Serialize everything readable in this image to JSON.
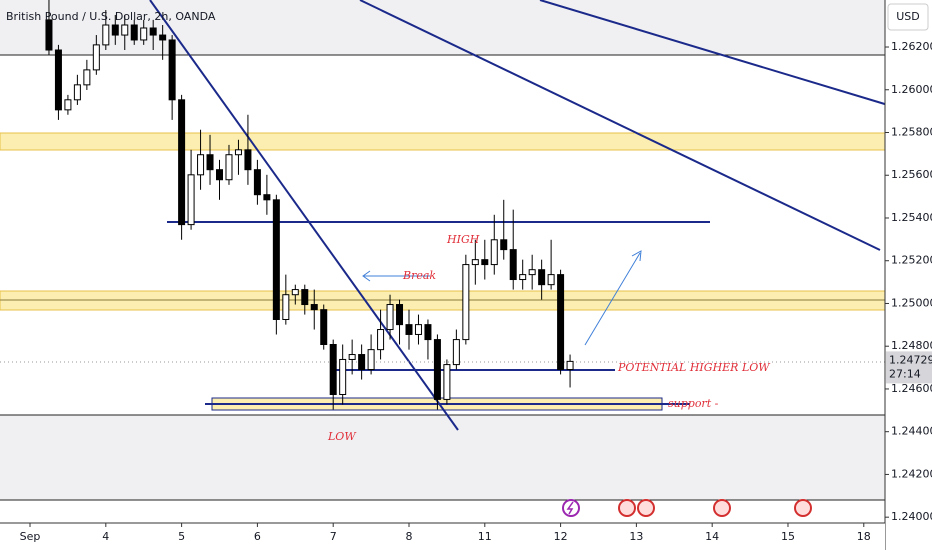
{
  "chart_data": {
    "type": "candlestick",
    "title": "British Pound / U.S. Dollar, 2h, OANDA",
    "currency": "USD",
    "last_price": 1.24729,
    "countdown": "27:14",
    "annotations": [
      "HIGH",
      "LOW",
      "Break",
      "POTENTIAL HIGHER LOW",
      "support -"
    ],
    "up_color": "#ffffff",
    "down_color": "#000000",
    "border_color": "#000000",
    "xlim": [
      -0.396,
      11.28
    ],
    "xticks": [
      {
        "value": 0,
        "label": "Sep"
      },
      {
        "value": 1,
        "label": "4"
      },
      {
        "value": 2,
        "label": "5"
      },
      {
        "value": 3,
        "label": "6"
      },
      {
        "value": 4,
        "label": "7"
      },
      {
        "value": 5,
        "label": "8"
      },
      {
        "value": 6,
        "label": "11"
      },
      {
        "value": 7,
        "label": "12"
      },
      {
        "value": 8,
        "label": "13"
      },
      {
        "value": 9,
        "label": "14"
      },
      {
        "value": 10,
        "label": "15"
      },
      {
        "value": 11,
        "label": "18"
      }
    ],
    "ylim": [
      1.2394,
      1.2642
    ],
    "yticks": [
      {
        "value": 1.262,
        "label": "1.26200"
      },
      {
        "value": 1.26,
        "label": "1.26000"
      },
      {
        "value": 1.258,
        "label": "1.25800"
      },
      {
        "value": 1.256,
        "label": "1.25600"
      },
      {
        "value": 1.254,
        "label": "1.25400"
      },
      {
        "value": 1.252,
        "label": "1.25200"
      },
      {
        "value": 1.25,
        "label": "1.25000"
      },
      {
        "value": 1.248,
        "label": "1.24800"
      },
      {
        "value": 1.246,
        "label": "1.24600"
      },
      {
        "value": 1.244,
        "label": "1.24400"
      },
      {
        "value": 1.242,
        "label": "1.24200"
      },
      {
        "value": 1.24,
        "label": "1.24000"
      }
    ],
    "x": [
      0.25,
      0.375,
      0.5,
      0.625,
      0.75,
      0.875,
      1,
      1.125,
      1.25,
      1.375,
      1.5,
      1.625,
      1.75,
      1.875,
      2,
      2.125,
      2.25,
      2.375,
      2.5,
      2.625,
      2.75,
      2.875,
      3,
      3.125,
      3.25,
      3.375,
      3.5,
      3.625,
      3.75,
      3.875,
      4,
      4.125,
      4.25,
      4.375,
      4.5,
      4.625,
      4.75,
      4.875,
      5,
      5.125,
      5.25,
      5.375,
      5.5,
      5.625,
      5.75,
      5.875,
      6,
      6.125,
      6.25,
      6.375,
      6.5,
      6.625,
      6.75,
      6.875,
      7,
      7.125
    ],
    "open": [
      1.26327,
      1.26186,
      1.25906,
      1.25953,
      1.26023,
      1.26093,
      1.2621,
      1.26303,
      1.26256,
      1.26303,
      1.26233,
      1.26289,
      1.26256,
      1.26233,
      1.25953,
      1.25369,
      1.25602,
      1.25696,
      1.25626,
      1.25579,
      1.25696,
      1.25719,
      1.25626,
      1.25509,
      1.25485,
      1.24925,
      1.25041,
      1.25065,
      1.24995,
      1.24971,
      1.24808,
      1.24574,
      1.24738,
      1.24761,
      1.24691,
      1.24784,
      1.24878,
      1.24995,
      1.24901,
      1.24855,
      1.24901,
      1.24831,
      1.24551,
      1.24714,
      1.24831,
      1.25182,
      1.25205,
      1.25182,
      1.25298,
      1.25252,
      1.25112,
      1.25135,
      1.25158,
      1.25088,
      1.25135,
      1.24691
    ],
    "high": [
      1.2642,
      1.2621,
      1.25976,
      1.2607,
      1.2614,
      1.26256,
      1.26373,
      1.2635,
      1.2635,
      1.26327,
      1.26327,
      1.26327,
      1.26303,
      1.26256,
      1.25976,
      1.25719,
      1.25813,
      1.25789,
      1.25672,
      1.25742,
      1.25766,
      1.25883,
      1.25672,
      1.25602,
      1.25509,
      1.25135,
      1.25088,
      1.25088,
      1.25065,
      1.24995,
      1.24831,
      1.24808,
      1.24831,
      1.24808,
      1.24855,
      1.24971,
      1.25041,
      1.25018,
      1.24971,
      1.24948,
      1.24925,
      1.24855,
      1.24738,
      1.24878,
      1.25228,
      1.25298,
      1.25298,
      1.25415,
      1.25485,
      1.25439,
      1.25205,
      1.25228,
      1.25205,
      1.25298,
      1.25158,
      1.24761
    ],
    "low": [
      1.26163,
      1.25859,
      1.25883,
      1.25929,
      1.25999,
      1.2607,
      1.26186,
      1.2621,
      1.26186,
      1.2621,
      1.2621,
      1.26186,
      1.2614,
      1.25859,
      1.25298,
      1.25345,
      1.25532,
      1.25555,
      1.25485,
      1.25555,
      1.25602,
      1.25555,
      1.25462,
      1.25415,
      1.24855,
      1.24901,
      1.24995,
      1.24948,
      1.24878,
      1.24784,
      1.24504,
      1.24527,
      1.24668,
      1.24644,
      1.24668,
      1.24738,
      1.24831,
      1.24808,
      1.24784,
      1.24808,
      1.24738,
      1.24504,
      1.24527,
      1.24691,
      1.24808,
      1.25088,
      1.25112,
      1.25135,
      1.25205,
      1.25065,
      1.25065,
      1.25065,
      1.25018,
      1.25065,
      1.24668,
      1.24607
    ],
    "close": [
      1.26186,
      1.25906,
      1.25953,
      1.26023,
      1.26093,
      1.2621,
      1.26303,
      1.26256,
      1.26303,
      1.26233,
      1.26289,
      1.26256,
      1.26233,
      1.25953,
      1.25369,
      1.25602,
      1.25696,
      1.25626,
      1.25579,
      1.25696,
      1.25719,
      1.25626,
      1.25509,
      1.25485,
      1.24925,
      1.25041,
      1.25065,
      1.24995,
      1.24971,
      1.24808,
      1.24574,
      1.24738,
      1.24761,
      1.24691,
      1.24784,
      1.24878,
      1.24995,
      1.24901,
      1.24855,
      1.24901,
      1.24831,
      1.24551,
      1.24714,
      1.24831,
      1.25182,
      1.25205,
      1.25182,
      1.25298,
      1.25252,
      1.25112,
      1.25135,
      1.25158,
      1.25088,
      1.25135,
      1.24691,
      1.24729
    ]
  }
}
